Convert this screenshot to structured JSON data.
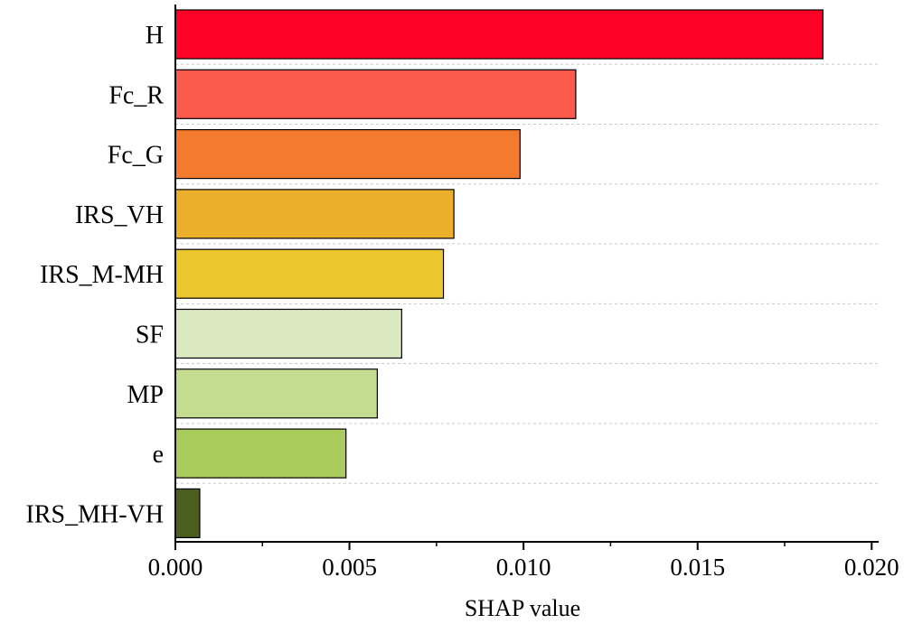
{
  "chart_data": {
    "type": "bar",
    "orientation": "horizontal",
    "title": "",
    "xlabel": "SHAP value",
    "ylabel": "",
    "xlim": [
      0,
      0.0202
    ],
    "grid": "dashed horizontal",
    "categories": [
      "H",
      "Fc_R",
      "Fc_G",
      "IRS_VH",
      "IRS_M-MH",
      "SF",
      "MP",
      "e",
      "IRS_MH-VH"
    ],
    "values": [
      0.0186,
      0.0115,
      0.0099,
      0.008,
      0.0077,
      0.0065,
      0.0058,
      0.0049,
      0.0007
    ],
    "colors": [
      "#ff0026",
      "#fd5a4e",
      "#f47a2e",
      "#ecaf2b",
      "#ebc62c",
      "#dbe9c1",
      "#c3dc90",
      "#a8cb5c",
      "#4a5e1f"
    ],
    "x_ticks": [
      "0.000",
      "0.005",
      "0.010",
      "0.015",
      "0.020"
    ],
    "x_tick_values": [
      0,
      0.005,
      0.01,
      0.015,
      0.02
    ]
  }
}
